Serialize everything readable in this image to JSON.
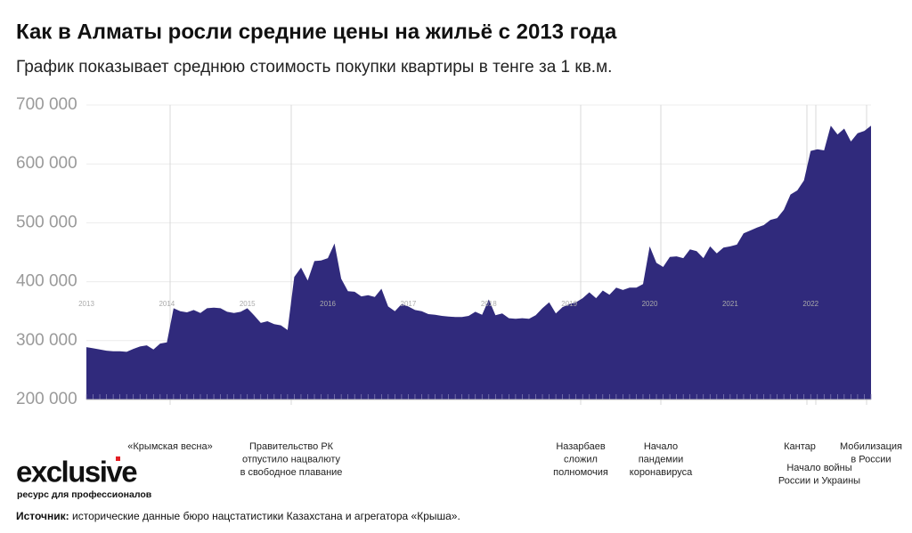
{
  "chart_data": {
    "type": "area",
    "title": "Как в Алматы росли средние цены на жильё с 2013 года",
    "subtitle": "График показывает среднюю стоимость покупки квартиры в тенге за 1 кв.м.",
    "color": "#302a7c",
    "grid": true,
    "categories": [
      "2013",
      null,
      null,
      null,
      null,
      null,
      null,
      null,
      null,
      null,
      null,
      null,
      "2014",
      null,
      null,
      null,
      null,
      null,
      null,
      null,
      null,
      null,
      null,
      null,
      "2015",
      null,
      null,
      null,
      null,
      null,
      null,
      null,
      null,
      null,
      null,
      null,
      "2016",
      null,
      null,
      null,
      null,
      null,
      null,
      null,
      null,
      null,
      null,
      null,
      "2017",
      null,
      null,
      null,
      null,
      null,
      null,
      null,
      null,
      null,
      null,
      null,
      "2018",
      null,
      null,
      null,
      null,
      null,
      null,
      null,
      null,
      null,
      null,
      null,
      "2019",
      null,
      null,
      null,
      null,
      null,
      null,
      null,
      null,
      null,
      null,
      null,
      "2020",
      null,
      null,
      null,
      null,
      null,
      null,
      null,
      null,
      null,
      null,
      null,
      "2021",
      null,
      null,
      null,
      null,
      null,
      null,
      null,
      null,
      null,
      null,
      null,
      "2022",
      null,
      null,
      null,
      null,
      null,
      null,
      null,
      null,
      null
    ],
    "values": [
      289000,
      287000,
      285000,
      283000,
      282000,
      282000,
      281000,
      286000,
      290000,
      292000,
      285000,
      295000,
      297000,
      355000,
      350000,
      348000,
      352000,
      347000,
      355000,
      356000,
      355000,
      349000,
      347000,
      349000,
      355000,
      343000,
      330000,
      333000,
      328000,
      326000,
      318000,
      408000,
      424000,
      402000,
      435000,
      436000,
      440000,
      465000,
      405000,
      384000,
      383000,
      375000,
      377000,
      374000,
      388000,
      358000,
      350000,
      362000,
      358000,
      352000,
      350000,
      345000,
      344000,
      342000,
      341000,
      340000,
      340000,
      342000,
      349000,
      344000,
      370000,
      343000,
      346000,
      338000,
      337000,
      338000,
      337000,
      343000,
      355000,
      365000,
      346000,
      357000,
      362000,
      365000,
      372000,
      382000,
      372000,
      385000,
      378000,
      390000,
      386000,
      390000,
      390000,
      396000,
      460000,
      432000,
      425000,
      442000,
      443000,
      440000,
      455000,
      452000,
      440000,
      460000,
      448000,
      458000,
      460000,
      463000,
      482000,
      487000,
      492000,
      496000,
      505000,
      508000,
      522000,
      548000,
      555000,
      572000,
      622000,
      625000,
      623000,
      665000,
      650000,
      660000,
      638000,
      652000,
      656000,
      665000
    ],
    "ylim": [
      200000,
      700000
    ],
    "yticks": [
      {
        "value": 200000,
        "label": "200 000"
      },
      {
        "value": 300000,
        "label": "300 000"
      },
      {
        "value": 400000,
        "label": "400 000"
      },
      {
        "value": 500000,
        "label": "500 000"
      },
      {
        "value": 600000,
        "label": "600 000"
      },
      {
        "value": 700000,
        "label": "700 000"
      }
    ],
    "annotations": [
      [
        "«Крымская весна»"
      ],
      [
        "Правительство РК",
        "отпустило нацвалюту",
        "в свободное плавание"
      ],
      [
        "Назарбаев",
        "сложил",
        "полномочия"
      ],
      [
        "Начало",
        "пандемии",
        "коронавируса"
      ],
      [
        "Кантар"
      ],
      [
        "Начало войны",
        "России и Украины"
      ],
      [
        "Мобилизация",
        "в России"
      ]
    ],
    "logo": {
      "name": "exclusive",
      "tagline": "ресурс для профессионалов"
    },
    "source": {
      "label": "Источник:",
      "text": "исторические данные бюро нацстатистики Казахстана и агрегатора «Крыша»."
    }
  }
}
